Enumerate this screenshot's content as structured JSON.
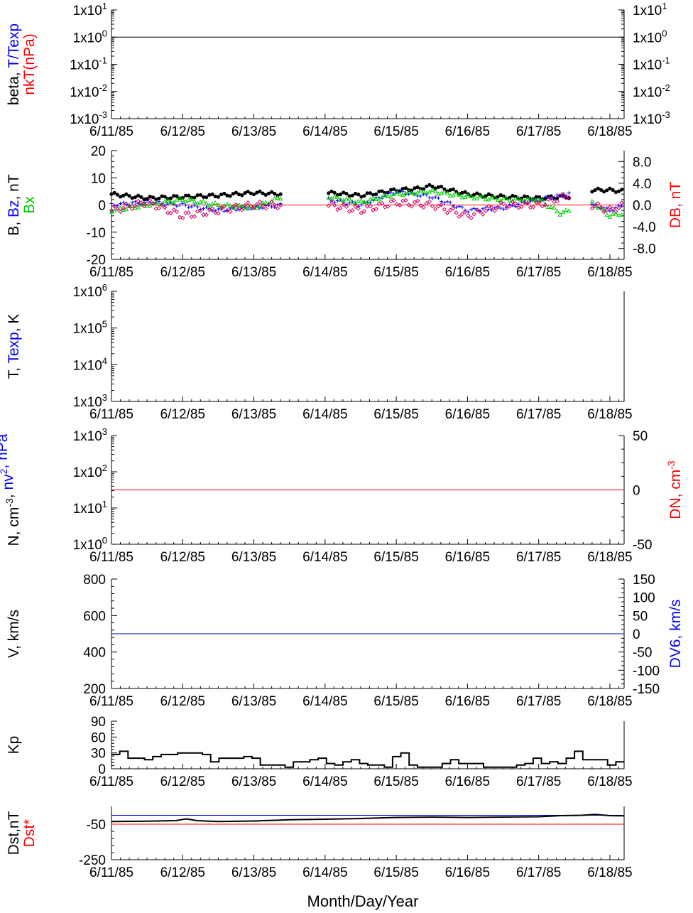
{
  "x_axis": {
    "tick_labels": [
      "6/11/85",
      "6/12/85",
      "6/13/85",
      "6/14/85",
      "6/15/85",
      "6/16/85",
      "6/17/85",
      "6/18/85"
    ],
    "xlabel": "Month/Day/Year"
  },
  "chart_data": [
    {
      "panel": "beta",
      "type": "line",
      "ylabel_parts": [
        {
          "text": "beta, ",
          "color": "#000000",
          "line": 1
        },
        {
          "text": "T/Texp",
          "color": "#0000ff",
          "line": 1
        },
        {
          "text": "nkT(nPa)",
          "color": "#ff0000",
          "line": 2
        }
      ],
      "yscale": "log",
      "ylim_exp": [
        -3,
        1
      ],
      "y_ticks_left": [
        {
          "mant": "1x10",
          "exp": "1",
          "v": 1
        },
        {
          "mant": "1x10",
          "exp": "0",
          "v": 0
        },
        {
          "mant": "1x10",
          "exp": "-1",
          "v": -1
        },
        {
          "mant": "1x10",
          "exp": "-2",
          "v": -2
        },
        {
          "mant": "1x10",
          "exp": "-3",
          "v": -3
        }
      ],
      "y_ticks_right": [
        {
          "mant": "1x10",
          "exp": "1",
          "v": 1
        },
        {
          "mant": "1x10",
          "exp": "0",
          "v": 0
        },
        {
          "mant": "1x10",
          "exp": "-1",
          "v": -1
        },
        {
          "mant": "1x10",
          "exp": "-2",
          "v": -2
        },
        {
          "mant": "1x10",
          "exp": "-3",
          "v": -3
        }
      ],
      "reference_line": {
        "value_exp": 0,
        "color": "#000000"
      }
    },
    {
      "panel": "B",
      "type": "scatter",
      "ylabel_parts": [
        {
          "text": "B, ",
          "color": "#000000",
          "line": 1
        },
        {
          "text": "Bz",
          "color": "#0000ff",
          "line": 1
        },
        {
          "text": ", nT",
          "color": "#000000",
          "line": 1
        },
        {
          "text": "Bx",
          "color": "#00cc00",
          "line": 2
        }
      ],
      "ylim": [
        -20,
        20
      ],
      "y_ticks_left": [
        "20",
        "10",
        "0",
        "-10",
        "-20"
      ],
      "y2label": "DB, nT",
      "y2label_color": "#ff0000",
      "y2lim": [
        -10,
        10
      ],
      "y2_ticks": [
        "8.0",
        "4.0",
        "0.0",
        "-4.0",
        "-8.0"
      ],
      "reference_line": {
        "value": 0,
        "color": "#ff0000"
      },
      "segments": [
        [
          0,
          2.4
        ],
        [
          3.05,
          6.45
        ],
        [
          6.75,
          7.2
        ]
      ],
      "series": [
        {
          "name": "B",
          "color": "#000000",
          "marker": "dot",
          "x": [
            0,
            0.5,
            1,
            1.5,
            2,
            2.4,
            3.05,
            3.5,
            4,
            4.3,
            4.5,
            5,
            5.5,
            6,
            6.3,
            6.45,
            6.75,
            7,
            7.2
          ],
          "y": [
            4,
            2.5,
            3,
            3.5,
            4.5,
            4,
            4.5,
            3.5,
            5.5,
            6,
            7,
            4,
            3,
            2.5,
            3,
            3,
            5.5,
            5.5,
            5
          ]
        },
        {
          "name": "Bz",
          "color": "#0000ff",
          "marker": "plus",
          "x": [
            0,
            0.5,
            1,
            1.5,
            2,
            2.4,
            3.05,
            3.5,
            4,
            4.5,
            5,
            5.5,
            6,
            6.45,
            6.75,
            7,
            7.2
          ],
          "y": [
            0,
            1,
            0,
            -2,
            -1,
            0,
            2,
            0,
            5,
            3,
            -2,
            -1,
            2,
            4,
            0,
            -2,
            0
          ]
        },
        {
          "name": "Bx",
          "color": "#00cc00",
          "marker": "triangle",
          "x": [
            0,
            0.5,
            1,
            1.5,
            2,
            2.4,
            3.05,
            3.5,
            4,
            4.5,
            5,
            5.5,
            6,
            6.3,
            6.45,
            6.75,
            7,
            7.2
          ],
          "y": [
            -2,
            0,
            2,
            0,
            -1,
            3,
            3,
            1,
            4,
            5,
            3,
            2,
            2,
            -3,
            -2,
            1,
            -4,
            -3
          ]
        },
        {
          "name": "DB",
          "color": "#cc0066",
          "marker": "diamond",
          "axis": "right",
          "x": [
            0,
            0.5,
            1,
            1.5,
            2,
            2.4,
            3.05,
            3.5,
            4,
            4.5,
            5,
            5.5,
            6,
            6.45,
            6.75,
            7,
            7.2
          ],
          "y": [
            -1,
            0.5,
            -2,
            -1,
            0,
            0,
            0,
            -1,
            0.5,
            0,
            -2,
            0,
            0,
            2,
            0,
            -1,
            0
          ]
        }
      ]
    },
    {
      "panel": "T",
      "type": "line",
      "ylabel_parts": [
        {
          "text": "T, ",
          "color": "#000000",
          "line": 1
        },
        {
          "text": "Texp",
          "color": "#0000ff",
          "line": 1
        },
        {
          "text": ", K",
          "color": "#000000",
          "line": 1
        }
      ],
      "yscale": "log",
      "ylim_exp": [
        3,
        6
      ],
      "y_ticks_left": [
        {
          "mant": "1x10",
          "exp": "6",
          "v": 6
        },
        {
          "mant": "1x10",
          "exp": "5",
          "v": 5
        },
        {
          "mant": "1x10",
          "exp": "4",
          "v": 4
        },
        {
          "mant": "1x10",
          "exp": "3",
          "v": 3
        }
      ]
    },
    {
      "panel": "N",
      "type": "line",
      "ylabel_parts": [
        {
          "text": "N, cm",
          "color": "#000000",
          "line": 1
        },
        {
          "text": "-3",
          "color": "#000000",
          "line": 1,
          "sup": true
        },
        {
          "text": ", ",
          "color": "#000000",
          "line": 1
        },
        {
          "text": "nv",
          "color": "#0000ff",
          "line": 1
        },
        {
          "text": "2",
          "color": "#0000ff",
          "line": 1,
          "sup": true
        },
        {
          "text": ", nPa",
          "color": "#0000ff",
          "line": 1
        }
      ],
      "yscale": "log",
      "ylim_exp": [
        0,
        3
      ],
      "y_ticks_left": [
        {
          "mant": "1x10",
          "exp": "3",
          "v": 3
        },
        {
          "mant": "1x10",
          "exp": "2",
          "v": 2
        },
        {
          "mant": "1x10",
          "exp": "1",
          "v": 1
        },
        {
          "mant": "1x10",
          "exp": "0",
          "v": 0
        }
      ],
      "y2label_parts": [
        {
          "text": "DN, cm",
          "color": "#ff0000"
        },
        {
          "text": "-3",
          "color": "#ff0000",
          "sup": true
        }
      ],
      "y2lim": [
        -50,
        50
      ],
      "y2_ticks": [
        "50",
        "0",
        "-50"
      ],
      "reference_line": {
        "value_right": 0,
        "color": "#ff0000"
      }
    },
    {
      "panel": "V",
      "type": "line",
      "ylabel_parts": [
        {
          "text": "V, km/s",
          "color": "#000000",
          "line": 1
        }
      ],
      "ylim": [
        200,
        800
      ],
      "y_ticks_left": [
        "800",
        "600",
        "400",
        "200"
      ],
      "y2label": "DV6, km/s",
      "y2label_color": "#0000ff",
      "y2lim": [
        -150,
        150
      ],
      "y2_ticks": [
        "150",
        "100",
        "50",
        "0",
        "-50",
        "-100",
        "-150"
      ],
      "reference_line": {
        "value_right": 0,
        "color": "#0000aa"
      }
    },
    {
      "panel": "Kp",
      "type": "line",
      "ylabel_parts": [
        {
          "text": "Kp",
          "color": "#000000",
          "line": 1
        }
      ],
      "ylim": [
        0,
        90
      ],
      "y_ticks_left": [
        "90",
        "60",
        "30",
        "0"
      ],
      "series": [
        {
          "name": "Kp",
          "color": "#000000",
          "step": true,
          "values": [
            27,
            33,
            20,
            20,
            17,
            23,
            27,
            27,
            30,
            30,
            30,
            27,
            13,
            20,
            20,
            20,
            23,
            20,
            7,
            7,
            7,
            3,
            13,
            13,
            17,
            20,
            10,
            7,
            13,
            17,
            10,
            7,
            7,
            3,
            23,
            30,
            7,
            3,
            3,
            3,
            10,
            17,
            10,
            10,
            10,
            3,
            3,
            3,
            3,
            7,
            10,
            20,
            10,
            13,
            10,
            20,
            33,
            17,
            17,
            17,
            7,
            13
          ]
        }
      ]
    },
    {
      "panel": "Dst",
      "type": "line",
      "ylabel_parts": [
        {
          "text": "Dst,nT",
          "color": "#000000",
          "line": 1
        },
        {
          "text": "Dst*",
          "color": "#ff0000",
          "line": 2
        }
      ],
      "ylim": [
        -250,
        50
      ],
      "y_ticks_left": [
        "-50",
        "-250"
      ],
      "reference_lines": [
        {
          "value": 0,
          "color": "#0000ff"
        },
        {
          "value": -50,
          "color": "#ff0000"
        }
      ],
      "series": [
        {
          "name": "Dst",
          "color": "#000000",
          "x": [
            0,
            0.5,
            0.9,
            1.05,
            1.2,
            1.5,
            2.0,
            2.5,
            3.0,
            3.5,
            4.0,
            4.5,
            5.0,
            5.5,
            6.0,
            6.3,
            6.6,
            6.8,
            7.0,
            7.2
          ],
          "y": [
            -35,
            -33,
            -30,
            -20,
            -30,
            -35,
            -32,
            -25,
            -22,
            -18,
            -12,
            -10,
            -12,
            -10,
            -8,
            -2,
            0,
            5,
            -2,
            -3
          ]
        }
      ]
    }
  ]
}
